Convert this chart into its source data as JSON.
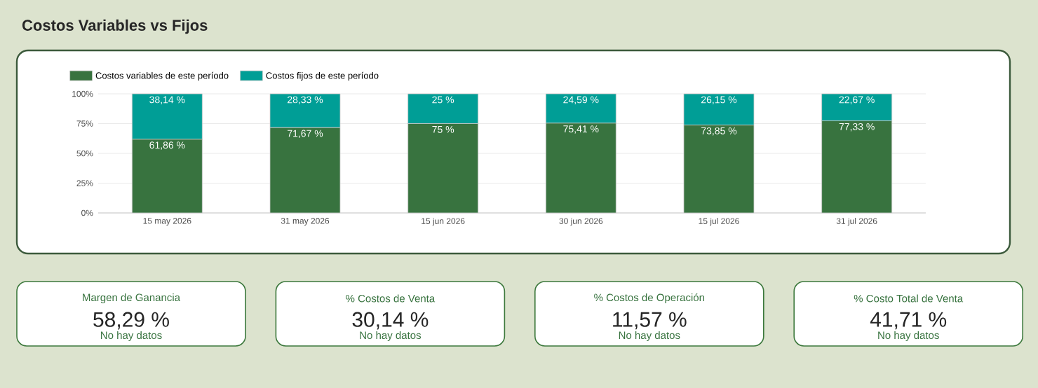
{
  "chart_data": [
    {
      "type": "bar",
      "title": "Costos Variables vs Fijos",
      "stacked": true,
      "categories": [
        "15 may 2026",
        "31 may 2026",
        "15 jun 2026",
        "30 jun 2026",
        "15 jul 2026",
        "31 jul 2026"
      ],
      "series": [
        {
          "name": "Costos variables de este período",
          "color": "#38733f",
          "values": [
            61.86,
            71.67,
            75,
            75.41,
            73.85,
            77.33
          ],
          "value_labels": [
            "61,86 %",
            "71,67 %",
            "75 %",
            "75,41 %",
            "73,85 %",
            "77,33 %"
          ]
        },
        {
          "name": "Costos fijos de este período",
          "color": "#009e96",
          "values": [
            38.14,
            28.33,
            25,
            24.59,
            26.15,
            22.67
          ],
          "value_labels": [
            "38,14 %",
            "28,33 %",
            "25 %",
            "24,59 %",
            "26,15 %",
            "22,67 %"
          ]
        }
      ],
      "ylim": [
        0,
        100
      ],
      "yticks": [
        {
          "value": 0,
          "label": "0%"
        },
        {
          "value": 25,
          "label": "25%"
        },
        {
          "value": 50,
          "label": "50%"
        },
        {
          "value": 75,
          "label": "75%"
        },
        {
          "value": 100,
          "label": "100%"
        }
      ],
      "grid": "y",
      "legend": "top left"
    },
    {
      "type": "other",
      "title": "Margen de Ganancia",
      "annotations": [
        "58,29 %",
        "No hay datos"
      ]
    },
    {
      "type": "other",
      "title": "% Costos de Venta",
      "annotations": [
        "30,14 %",
        "No hay datos"
      ]
    },
    {
      "type": "other",
      "title": "% Costos de Operación",
      "annotations": [
        "11,57 %",
        "No hay datos"
      ]
    },
    {
      "type": "other",
      "title": "% Costo Total de Venta",
      "annotations": [
        "41,71 %",
        "No hay datos"
      ]
    }
  ]
}
